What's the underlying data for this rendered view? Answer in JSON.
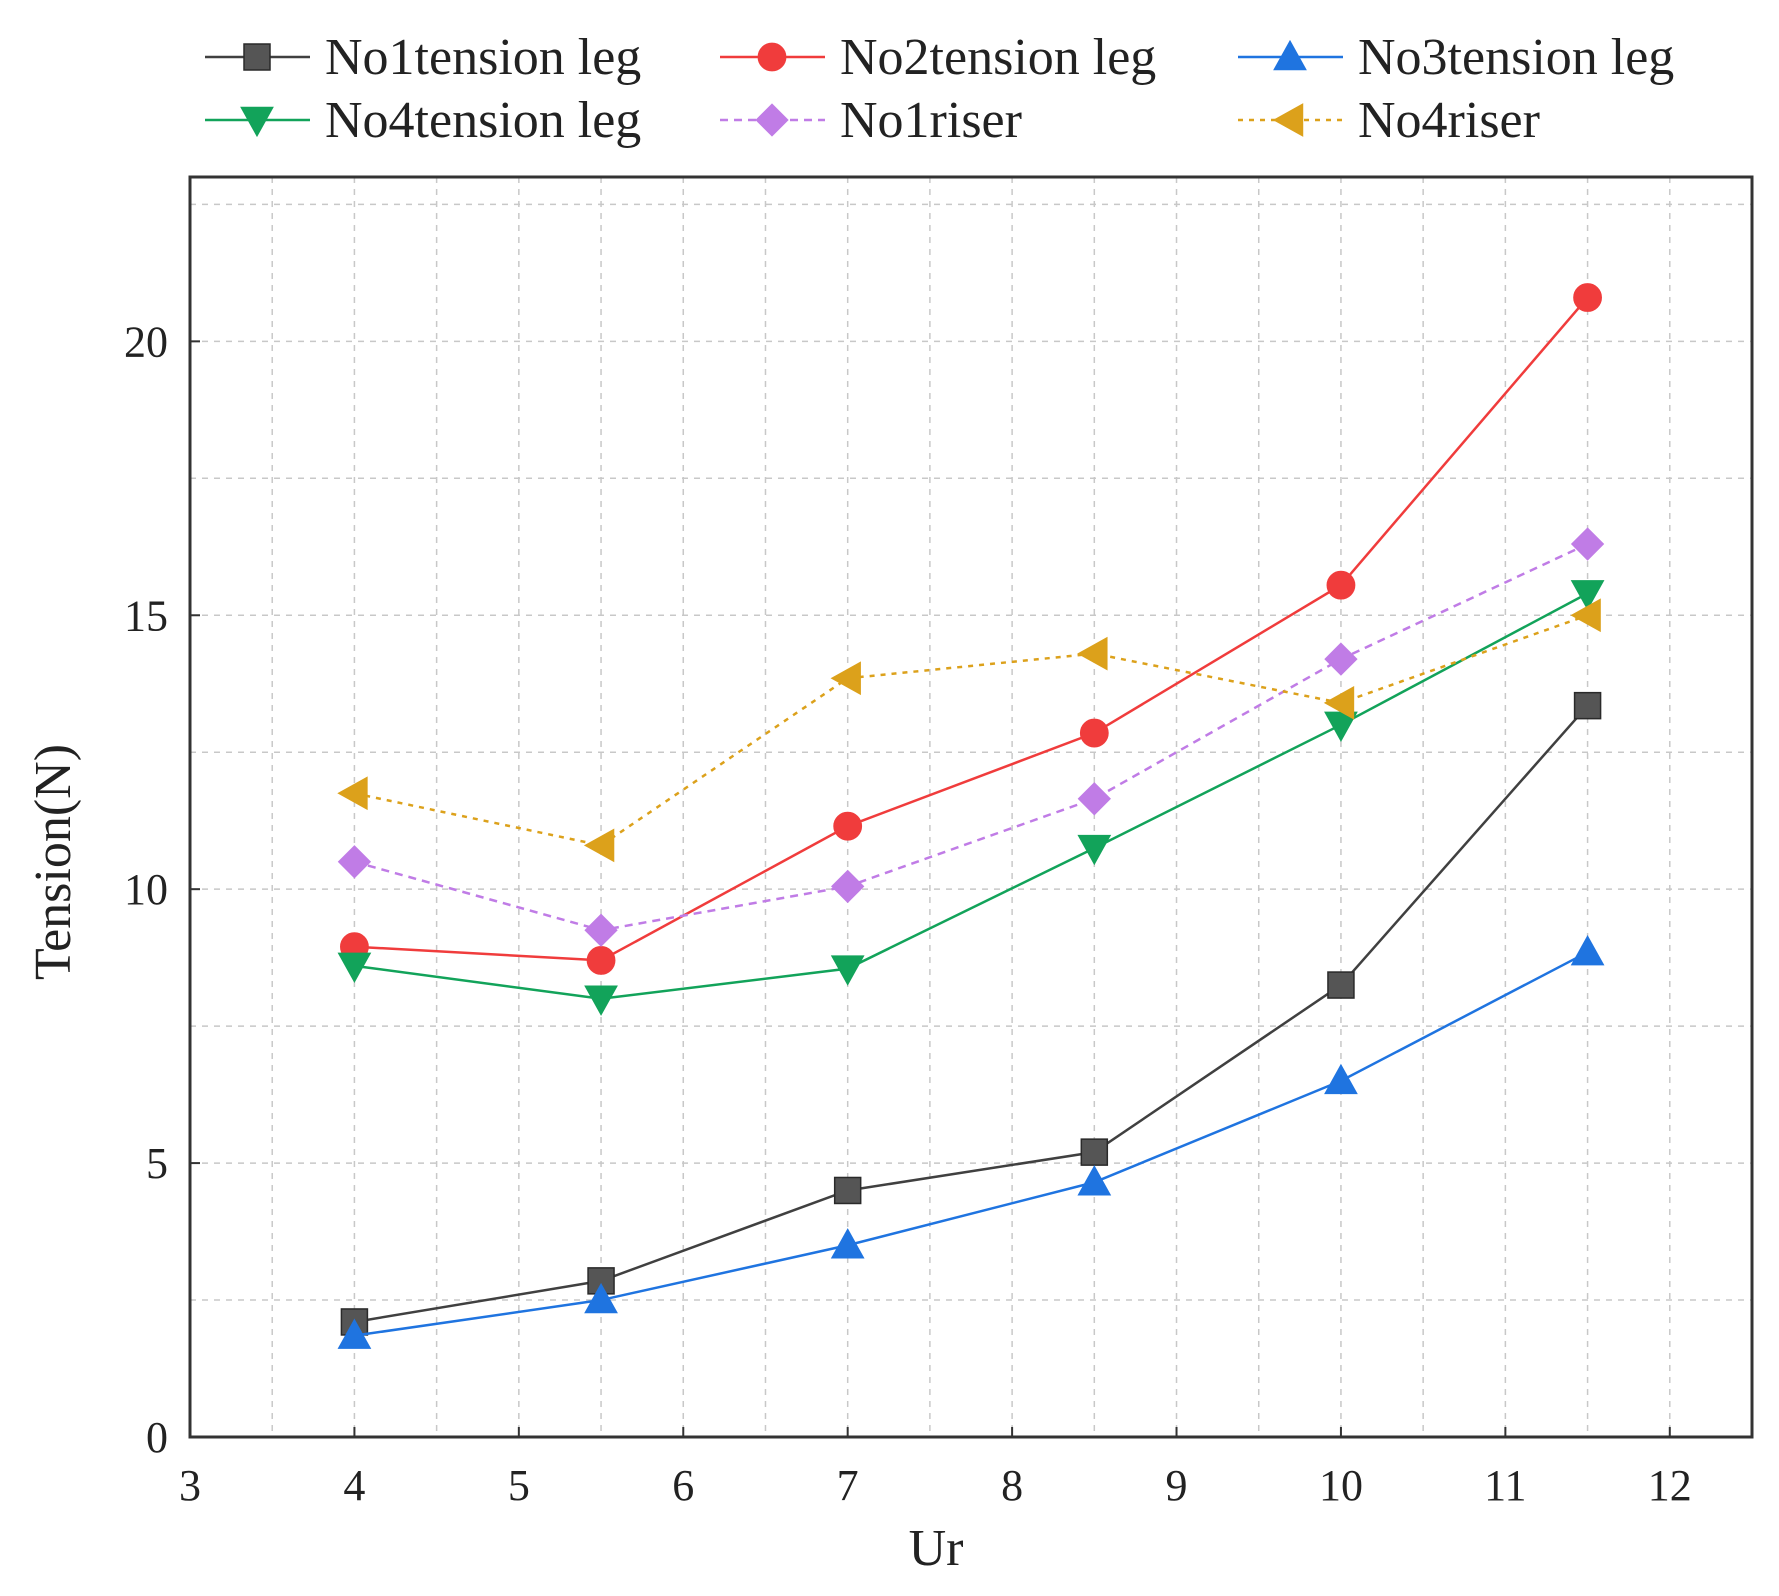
{
  "chart_data": {
    "type": "line",
    "title": "",
    "xlabel": "Ur",
    "ylabel": "Tension(N)",
    "xlim": [
      3,
      12.5
    ],
    "ylim": [
      0,
      23
    ],
    "x_ticks": [
      3,
      4,
      5,
      6,
      7,
      8,
      9,
      10,
      11,
      12
    ],
    "y_ticks": [
      0,
      5,
      10,
      15,
      20
    ],
    "x_grid": [
      3.5,
      4,
      4.5,
      5,
      5.5,
      6,
      6.5,
      7,
      7.5,
      8,
      8.5,
      9,
      9.5,
      10,
      10.5,
      11,
      11.5,
      12,
      12.5
    ],
    "y_grid": [
      2.5,
      5,
      7.5,
      10,
      12.5,
      15,
      17.5,
      20,
      22.5
    ],
    "grid": true,
    "legend_position": "top",
    "x": [
      4,
      5.5,
      7,
      8.5,
      10,
      11.5
    ],
    "series": [
      {
        "name": "No1tension leg",
        "values": [
          2.1,
          2.85,
          4.5,
          5.2,
          8.25,
          13.35
        ],
        "color": "#404040",
        "marker": "square",
        "dash": "solid"
      },
      {
        "name": "No2tension leg",
        "values": [
          8.95,
          8.7,
          11.15,
          12.85,
          15.55,
          20.8
        ],
        "color": "#f03c3c",
        "marker": "circle",
        "dash": "solid"
      },
      {
        "name": "No3tension leg",
        "values": [
          1.85,
          2.5,
          3.5,
          4.65,
          6.5,
          8.85
        ],
        "color": "#1f74e0",
        "marker": "triangle-up",
        "dash": "solid"
      },
      {
        "name": "No4tension leg",
        "values": [
          8.6,
          8.0,
          8.55,
          10.75,
          13.0,
          15.4
        ],
        "color": "#12a35a",
        "marker": "triangle-down",
        "dash": "solid"
      },
      {
        "name": "No1riser",
        "values": [
          10.5,
          9.25,
          10.05,
          11.65,
          14.2,
          16.3
        ],
        "color": "#c07ce6",
        "marker": "diamond",
        "dash": "dashed"
      },
      {
        "name": "No4riser",
        "values": [
          11.75,
          10.8,
          13.85,
          14.3,
          13.4,
          15.0
        ],
        "color": "#dca11b",
        "marker": "triangle-left",
        "dash": "dotted"
      }
    ]
  }
}
